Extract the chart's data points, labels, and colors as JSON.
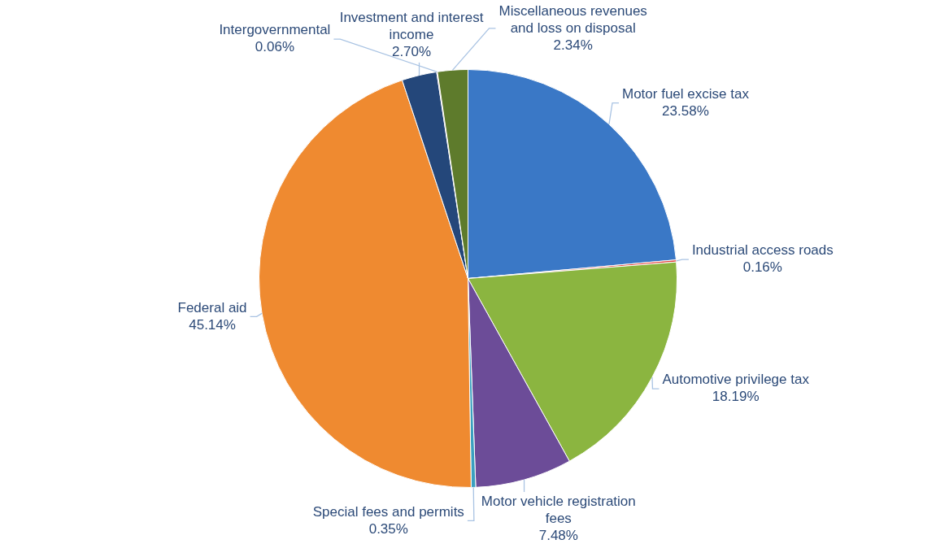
{
  "chart_data": {
    "type": "pie",
    "categories": [
      "Motor fuel excise tax",
      "Industrial access roads",
      "Automotive privilege tax",
      "Motor vehicle registration fees",
      "Special fees and permits",
      "Federal aid",
      "Investment and interest income",
      "Intergovernmental",
      "Miscellaneous revenues and loss on disposal"
    ],
    "values": [
      23.58,
      0.16,
      18.19,
      7.48,
      0.35,
      45.14,
      2.7,
      0.06,
      2.34
    ],
    "value_labels": [
      "23.58%",
      "0.16%",
      "18.19%",
      "7.48%",
      "0.35%",
      "45.14%",
      "2.70%",
      "0.06%",
      "2.34%"
    ],
    "colors": [
      "#3a78c6",
      "#e0403a",
      "#8bb540",
      "#6c4c98",
      "#3aa0c0",
      "#ef8a30",
      "#24477a",
      "#d0506a",
      "#5e7b2c"
    ],
    "legend": false
  }
}
